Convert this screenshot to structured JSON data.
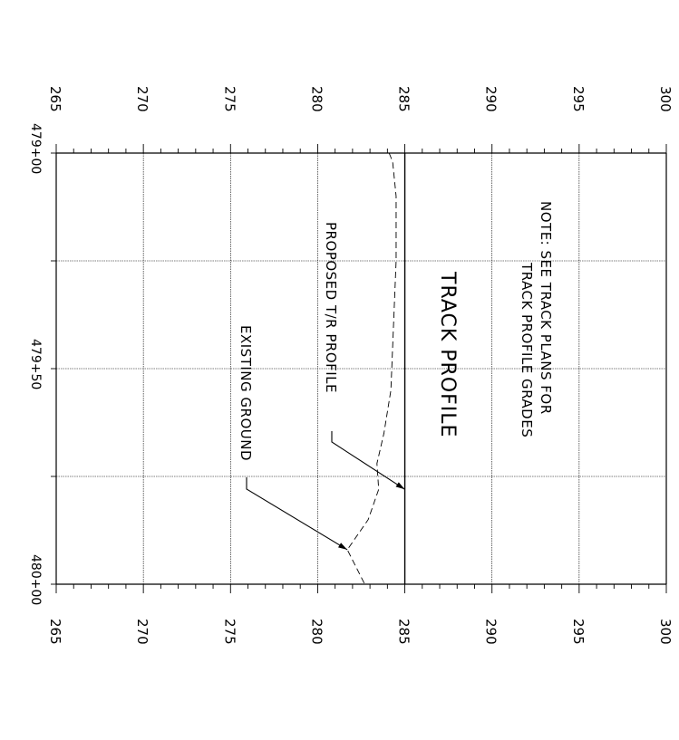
{
  "title": "TRACK PROFILE",
  "note_line1": "NOTE: SEE TRACK PLANS FOR",
  "note_line2": "TRACK PROFILE GRADES",
  "proposed_label": "PROPOSED T/R PROFILE",
  "existing_label": "EXISTING GROUND",
  "chart_data": {
    "type": "line",
    "title": "TRACK PROFILE",
    "xlabel": "",
    "ylabel": "",
    "orientation": "rotated 90 degrees clockwise",
    "x_axis_stations": [
      "479+00",
      "479+50",
      "480+00"
    ],
    "y_ticks": [
      265,
      270,
      275,
      280,
      285,
      290,
      295,
      300
    ],
    "xlim_ft": [
      0,
      100
    ],
    "ylim": [
      265,
      300
    ],
    "grid": true,
    "series": [
      {
        "name": "PROPOSED T/R PROFILE",
        "style": "solid",
        "x": [
          0,
          100
        ],
        "y": [
          285.0,
          285.0
        ]
      },
      {
        "name": "EXISTING GROUND",
        "style": "dashed",
        "x": [
          0,
          2,
          10,
          25,
          35,
          45,
          55,
          65,
          72,
          78,
          85,
          92,
          100
        ],
        "y": [
          284.1,
          284.3,
          284.5,
          284.5,
          284.4,
          284.3,
          284.2,
          283.8,
          283.4,
          283.5,
          282.9,
          281.7,
          282.7
        ]
      }
    ]
  }
}
